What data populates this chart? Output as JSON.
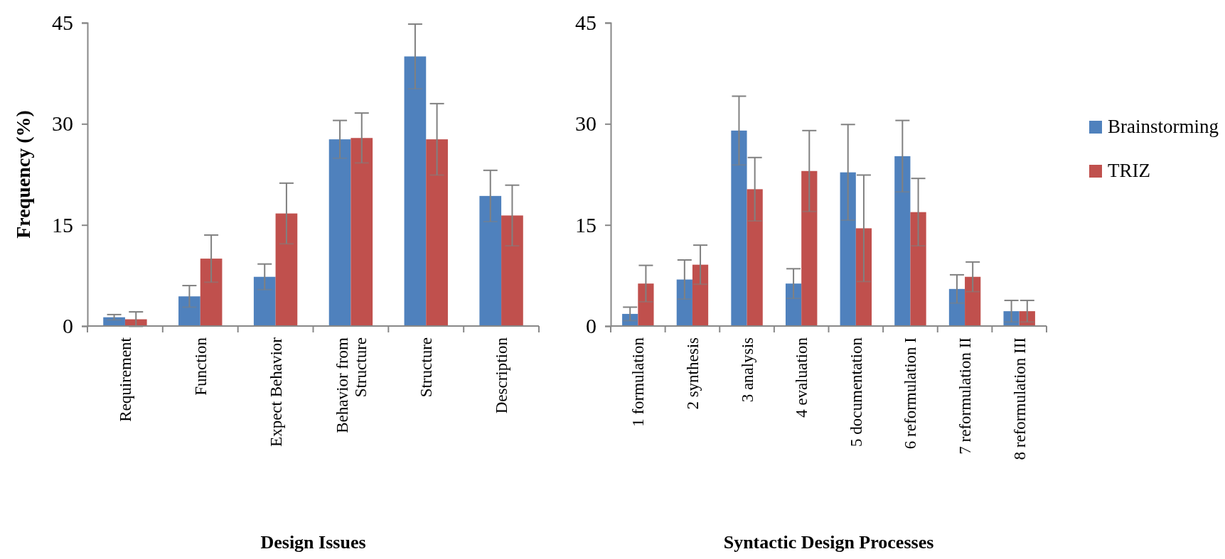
{
  "chart_data": [
    {
      "type": "bar",
      "ylabel": "Frequency (%)",
      "xlabel": "Design Issues",
      "categories": [
        "Requirement",
        "Function",
        "Expect Behavior",
        "Behavior from Structure",
        "Structure",
        "Description"
      ],
      "ylim": [
        0,
        45
      ],
      "yticks": [
        0,
        15,
        30,
        45
      ],
      "grid": false,
      "legend": false,
      "series": [
        {
          "color": "#4f81bd",
          "values": [
            1.3,
            4.4,
            7.3,
            27.7,
            40.0,
            19.3
          ],
          "errors": [
            0.4,
            1.6,
            1.9,
            2.8,
            4.8,
            3.8
          ]
        },
        {
          "color": "#c0504d",
          "values": [
            1.0,
            10.0,
            16.7,
            27.9,
            27.7,
            16.4
          ],
          "errors": [
            1.1,
            3.5,
            4.5,
            3.7,
            5.3,
            4.5
          ]
        }
      ]
    },
    {
      "type": "bar",
      "xlabel": "Syntactic Design Processes",
      "categories": [
        "1 formulation",
        "2 synthesis",
        "3 analysis",
        "4 evaluation",
        "5 documentation",
        "6 reformulation I",
        "7 reformulation II",
        "8 reformulation III"
      ],
      "ylim": [
        0,
        45
      ],
      "yticks": [
        0,
        15,
        30,
        45
      ],
      "grid": false,
      "legend": "right",
      "series": [
        {
          "name": "Brainstorming",
          "color": "#4f81bd",
          "values": [
            1.8,
            6.9,
            29.0,
            6.3,
            22.8,
            25.2,
            5.5,
            2.2
          ],
          "errors": [
            1.0,
            2.9,
            5.1,
            2.2,
            7.1,
            5.3,
            2.1,
            1.6
          ]
        },
        {
          "name": "TRIZ",
          "color": "#c0504d",
          "values": [
            6.3,
            9.1,
            20.3,
            23.0,
            14.5,
            16.9,
            7.3,
            2.2
          ],
          "errors": [
            2.7,
            2.9,
            4.7,
            6.0,
            7.9,
            5.0,
            2.2,
            1.6
          ]
        }
      ]
    }
  ]
}
